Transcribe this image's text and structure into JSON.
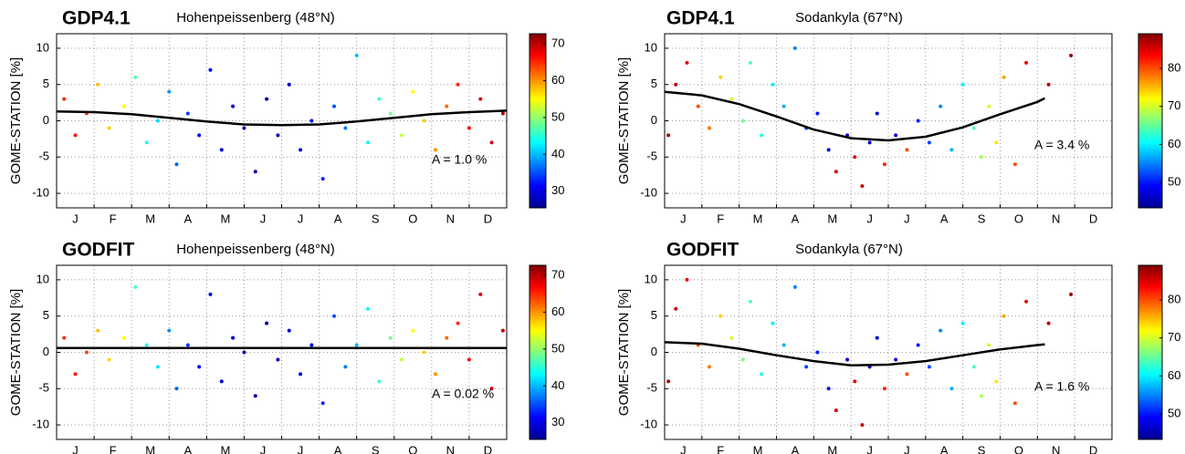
{
  "chart_data": [
    {
      "type": "scatter",
      "title": "GDP4.1",
      "subtitle": "Hohenpeissenberg (48°N)",
      "ylabel": "GOME-STATION [%]",
      "annotation": "A = 1.0 %",
      "categories": [
        "J",
        "F",
        "M",
        "A",
        "M",
        "J",
        "J",
        "A",
        "S",
        "O",
        "N",
        "D"
      ],
      "xlim": [
        0,
        12
      ],
      "xticks": [
        0,
        1,
        2,
        3,
        4,
        5,
        6,
        7,
        8,
        9,
        10,
        11,
        12
      ],
      "ylim": [
        -12,
        12
      ],
      "yticks": [
        -10,
        -5,
        0,
        5,
        10
      ],
      "grid": true,
      "colorbar": {
        "lim": [
          25.5,
          72.7
        ],
        "ticks": [
          30,
          40,
          50,
          60,
          70
        ],
        "colormap": "jet"
      },
      "points": {
        "x": [
          0.2,
          0.5,
          0.8,
          1.1,
          1.4,
          1.8,
          2.1,
          2.4,
          2.7,
          3.0,
          3.2,
          3.5,
          3.8,
          4.1,
          4.4,
          4.7,
          5.0,
          5.3,
          5.6,
          5.9,
          6.2,
          6.5,
          6.8,
          7.1,
          7.4,
          7.7,
          8.0,
          8.3,
          8.6,
          8.9,
          9.2,
          9.5,
          9.8,
          10.1,
          10.4,
          10.7,
          11.0,
          11.3,
          11.6,
          11.9
        ],
        "y": [
          3,
          -2,
          1,
          5,
          -1,
          2,
          6,
          -3,
          0,
          4,
          -6,
          1,
          -2,
          7,
          -4,
          2,
          -1,
          -7,
          3,
          -2,
          5,
          -4,
          0,
          -8,
          2,
          -1,
          9,
          -3,
          3,
          1,
          -2,
          4,
          0,
          -4,
          2,
          5,
          -1,
          3,
          -3,
          1
        ],
        "c": [
          65,
          66,
          64,
          58,
          57,
          55,
          47,
          45,
          42,
          38,
          36,
          34,
          32,
          30,
          29,
          28,
          27,
          27,
          27,
          28,
          28,
          29,
          31,
          33,
          35,
          37,
          40,
          43,
          46,
          49,
          52,
          55,
          57,
          60,
          62,
          65,
          67,
          68,
          69,
          70
        ]
      },
      "fit": {
        "color": "#000000",
        "x": [
          0,
          1,
          2,
          3,
          4,
          5,
          6,
          7,
          8,
          9,
          10,
          11,
          12
        ],
        "y": [
          1.3,
          1.2,
          0.9,
          0.4,
          -0.1,
          -0.5,
          -0.6,
          -0.5,
          -0.1,
          0.4,
          0.9,
          1.2,
          1.4
        ]
      }
    },
    {
      "type": "scatter",
      "title": "GDP4.1",
      "subtitle": "Sodankyla (67°N)",
      "ylabel": "GOME-STATION [%]",
      "annotation": "A = 3.4 %",
      "categories": [
        "J",
        "F",
        "M",
        "A",
        "M",
        "J",
        "J",
        "A",
        "S",
        "O",
        "N",
        "D"
      ],
      "xlim": [
        0,
        12
      ],
      "xticks": [
        0,
        1,
        2,
        3,
        4,
        5,
        6,
        7,
        8,
        9,
        10,
        11,
        12
      ],
      "ylim": [
        -12,
        12
      ],
      "yticks": [
        -10,
        -5,
        0,
        5,
        10
      ],
      "grid": true,
      "colorbar": {
        "lim": [
          43.3,
          89.1
        ],
        "ticks": [
          50,
          60,
          70,
          80
        ],
        "colormap": "jet"
      },
      "points": {
        "x": [
          0.1,
          0.3,
          0.6,
          0.9,
          1.2,
          1.5,
          1.8,
          2.1,
          2.3,
          2.6,
          2.9,
          3.2,
          3.5,
          3.8,
          4.1,
          4.4,
          4.6,
          4.9,
          5.1,
          5.3,
          5.5,
          5.7,
          5.9,
          6.2,
          6.5,
          6.8,
          7.1,
          7.4,
          7.7,
          8.0,
          8.3,
          8.5,
          8.7,
          8.9,
          9.1,
          9.4,
          9.7,
          10.3,
          10.9
        ],
        "y": [
          -2,
          5,
          8,
          2,
          -1,
          6,
          3,
          0,
          8,
          -2,
          5,
          2,
          10,
          -1,
          1,
          -4,
          -7,
          -2,
          -5,
          -9,
          -3,
          1,
          -6,
          -2,
          -4,
          0,
          -3,
          2,
          -4,
          5,
          -1,
          -5,
          2,
          -3,
          6,
          -6,
          8,
          5,
          9
        ],
        "c": [
          87,
          86,
          84,
          80,
          78,
          74,
          70,
          66,
          64,
          62,
          60,
          57,
          55,
          52,
          50,
          48,
          85,
          47,
          84,
          86,
          46,
          47,
          82,
          48,
          80,
          50,
          52,
          55,
          57,
          60,
          64,
          68,
          70,
          73,
          76,
          80,
          84,
          87,
          88
        ]
      },
      "fit": {
        "color": "#000000",
        "x": [
          0,
          1,
          2,
          3,
          4,
          5,
          6,
          7,
          8,
          9,
          10,
          10.2
        ],
        "y": [
          4.0,
          3.5,
          2.3,
          0.6,
          -1.2,
          -2.4,
          -2.7,
          -2.2,
          -0.9,
          0.9,
          2.6,
          3.1
        ]
      }
    },
    {
      "type": "scatter",
      "title": "GODFIT",
      "subtitle": "Hohenpeissenberg (48°N)",
      "ylabel": "GOME-STATION [%]",
      "annotation": "A = 0.02 %",
      "categories": [
        "J",
        "F",
        "M",
        "A",
        "M",
        "J",
        "J",
        "A",
        "S",
        "O",
        "N",
        "D"
      ],
      "xlim": [
        0,
        12
      ],
      "xticks": [
        0,
        1,
        2,
        3,
        4,
        5,
        6,
        7,
        8,
        9,
        10,
        11,
        12
      ],
      "ylim": [
        -12,
        12
      ],
      "yticks": [
        -10,
        -5,
        0,
        5,
        10
      ],
      "grid": true,
      "colorbar": {
        "lim": [
          25.5,
          72.7
        ],
        "ticks": [
          30,
          40,
          50,
          60,
          70
        ],
        "colormap": "jet"
      },
      "points": {
        "x": [
          0.2,
          0.5,
          0.8,
          1.1,
          1.4,
          1.8,
          2.1,
          2.4,
          2.7,
          3.0,
          3.2,
          3.5,
          3.8,
          4.1,
          4.4,
          4.7,
          5.0,
          5.3,
          5.6,
          5.9,
          6.2,
          6.5,
          6.8,
          7.1,
          7.4,
          7.7,
          8.0,
          8.3,
          8.6,
          8.9,
          9.2,
          9.5,
          9.8,
          10.1,
          10.4,
          10.7,
          11.0,
          11.3,
          11.6,
          11.9
        ],
        "y": [
          2,
          -3,
          0,
          3,
          -1,
          2,
          9,
          1,
          -2,
          3,
          -5,
          1,
          -2,
          8,
          -4,
          2,
          0,
          -6,
          4,
          -1,
          3,
          -3,
          1,
          -7,
          5,
          -2,
          1,
          6,
          -4,
          2,
          -1,
          3,
          0,
          -3,
          2,
          4,
          -1,
          8,
          -5,
          3
        ],
        "c": [
          65,
          66,
          64,
          58,
          57,
          55,
          47,
          45,
          42,
          38,
          36,
          34,
          32,
          30,
          29,
          28,
          27,
          27,
          27,
          28,
          28,
          29,
          31,
          33,
          35,
          37,
          40,
          43,
          46,
          49,
          52,
          55,
          57,
          60,
          62,
          65,
          67,
          68,
          69,
          70
        ]
      },
      "fit": {
        "color": "#000000",
        "x": [
          0,
          12
        ],
        "y": [
          0.6,
          0.6
        ]
      }
    },
    {
      "type": "scatter",
      "title": "GODFIT",
      "subtitle": "Sodankyla (67°N)",
      "ylabel": "GOME-STATION [%]",
      "annotation": "A = 1.6 %",
      "categories": [
        "J",
        "F",
        "M",
        "A",
        "M",
        "J",
        "J",
        "A",
        "S",
        "O",
        "N",
        "D"
      ],
      "xlim": [
        0,
        12
      ],
      "xticks": [
        0,
        1,
        2,
        3,
        4,
        5,
        6,
        7,
        8,
        9,
        10,
        11,
        12
      ],
      "ylim": [
        -12,
        12
      ],
      "yticks": [
        -10,
        -5,
        0,
        5,
        10
      ],
      "grid": true,
      "colorbar": {
        "lim": [
          43.3,
          89.1
        ],
        "ticks": [
          50,
          60,
          70,
          80
        ],
        "colormap": "jet"
      },
      "points": {
        "x": [
          0.1,
          0.3,
          0.6,
          0.9,
          1.2,
          1.5,
          1.8,
          2.1,
          2.3,
          2.6,
          2.9,
          3.2,
          3.5,
          3.8,
          4.1,
          4.4,
          4.6,
          4.9,
          5.1,
          5.3,
          5.5,
          5.7,
          5.9,
          6.2,
          6.5,
          6.8,
          7.1,
          7.4,
          7.7,
          8.0,
          8.3,
          8.5,
          8.7,
          8.9,
          9.1,
          9.4,
          9.7,
          10.3,
          10.9
        ],
        "y": [
          -4,
          6,
          10,
          1,
          -2,
          5,
          2,
          -1,
          7,
          -3,
          4,
          1,
          9,
          -2,
          0,
          -5,
          -8,
          -1,
          -4,
          -10,
          -2,
          2,
          -5,
          -1,
          -3,
          1,
          -2,
          3,
          -5,
          4,
          -2,
          -6,
          1,
          -4,
          5,
          -7,
          7,
          4,
          8
        ],
        "c": [
          87,
          86,
          84,
          80,
          78,
          74,
          70,
          66,
          64,
          62,
          60,
          57,
          55,
          52,
          50,
          48,
          85,
          47,
          84,
          86,
          46,
          47,
          82,
          48,
          80,
          50,
          52,
          55,
          57,
          60,
          64,
          68,
          70,
          73,
          76,
          80,
          84,
          87,
          88
        ]
      },
      "fit": {
        "color": "#000000",
        "x": [
          0,
          1,
          2,
          3,
          4,
          5,
          6,
          7,
          8,
          9,
          10,
          10.2
        ],
        "y": [
          1.4,
          1.2,
          0.5,
          -0.4,
          -1.2,
          -1.8,
          -1.7,
          -1.2,
          -0.4,
          0.4,
          1.0,
          1.1
        ]
      }
    }
  ]
}
